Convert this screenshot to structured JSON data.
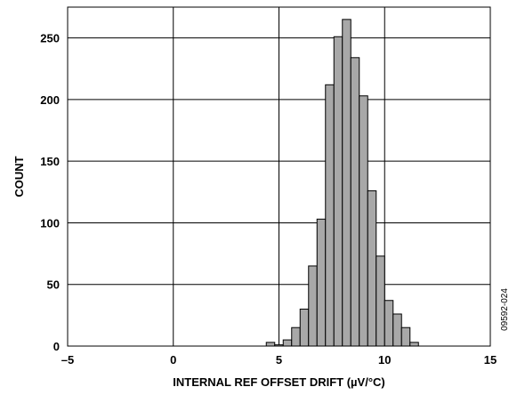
{
  "chart_data": {
    "type": "bar",
    "subtype": "histogram",
    "xlabel": "INTERNAL REF OFFSET DRIFT (µV/°C)",
    "ylabel": "COUNT",
    "xlim": [
      -5,
      15
    ],
    "ylim": [
      0,
      275
    ],
    "xticks": [
      -5,
      0,
      5,
      10,
      15
    ],
    "xtick_labels": [
      "–5",
      "0",
      "5",
      "10",
      "15"
    ],
    "yticks": [
      0,
      50,
      100,
      150,
      200,
      250
    ],
    "ytick_labels": [
      "0",
      "50",
      "100",
      "150",
      "200",
      "250"
    ],
    "grid": true,
    "bar_color": "#a8a8a8",
    "bin_width": 0.4,
    "bins": [
      {
        "start": 4.4,
        "count": 3
      },
      {
        "start": 4.8,
        "count": 1
      },
      {
        "start": 5.2,
        "count": 5
      },
      {
        "start": 5.6,
        "count": 15
      },
      {
        "start": 6.0,
        "count": 30
      },
      {
        "start": 6.4,
        "count": 65
      },
      {
        "start": 6.8,
        "count": 103
      },
      {
        "start": 7.2,
        "count": 212
      },
      {
        "start": 7.6,
        "count": 251
      },
      {
        "start": 8.0,
        "count": 265
      },
      {
        "start": 8.4,
        "count": 234
      },
      {
        "start": 8.8,
        "count": 203
      },
      {
        "start": 9.2,
        "count": 126
      },
      {
        "start": 9.6,
        "count": 73
      },
      {
        "start": 10.0,
        "count": 37
      },
      {
        "start": 10.4,
        "count": 26
      },
      {
        "start": 10.8,
        "count": 15
      },
      {
        "start": 11.2,
        "count": 3
      }
    ]
  },
  "doc_id": "09592-024"
}
